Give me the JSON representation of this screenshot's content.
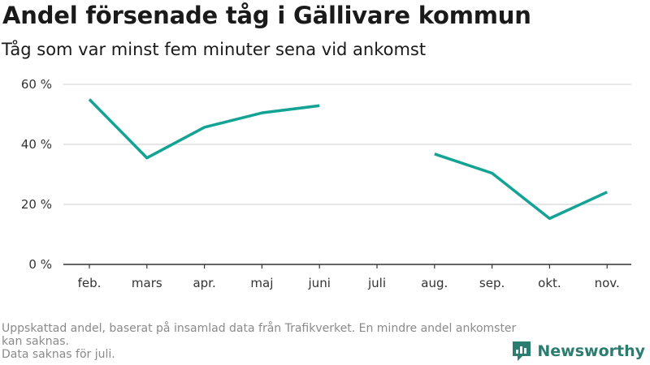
{
  "header": {
    "title": "Andel försenade tåg i Gällivare kommun",
    "subtitle": "Tåg som var minst fem minuter sena vid ankomst"
  },
  "footer": {
    "note_line1": "Uppskattad andel, baserat på insamlad data från Trafikverket. En mindre andel ankomster kan saknas.",
    "note_line2": "Data saknas för juli.",
    "brand": "Newsworthy"
  },
  "colors": {
    "line": "#13a394",
    "grid": "#dddddd",
    "axis": "#333333",
    "brand": "#2a7d6f"
  },
  "chart_data": {
    "type": "line",
    "categories": [
      "feb.",
      "mars",
      "apr.",
      "maj",
      "juni",
      "juli",
      "aug.",
      "sep.",
      "okt.",
      "nov."
    ],
    "series": [
      {
        "values": [
          55,
          35.5,
          45.7,
          50.5,
          52.9,
          null,
          36.8,
          30.4,
          15.3,
          24.1
        ]
      }
    ],
    "ylim": [
      0,
      60
    ],
    "yticks": [
      0,
      20,
      40,
      60
    ],
    "ytick_labels": [
      "0 %",
      "20 %",
      "40 %",
      "60 %"
    ],
    "grid": true,
    "legend": "none"
  }
}
